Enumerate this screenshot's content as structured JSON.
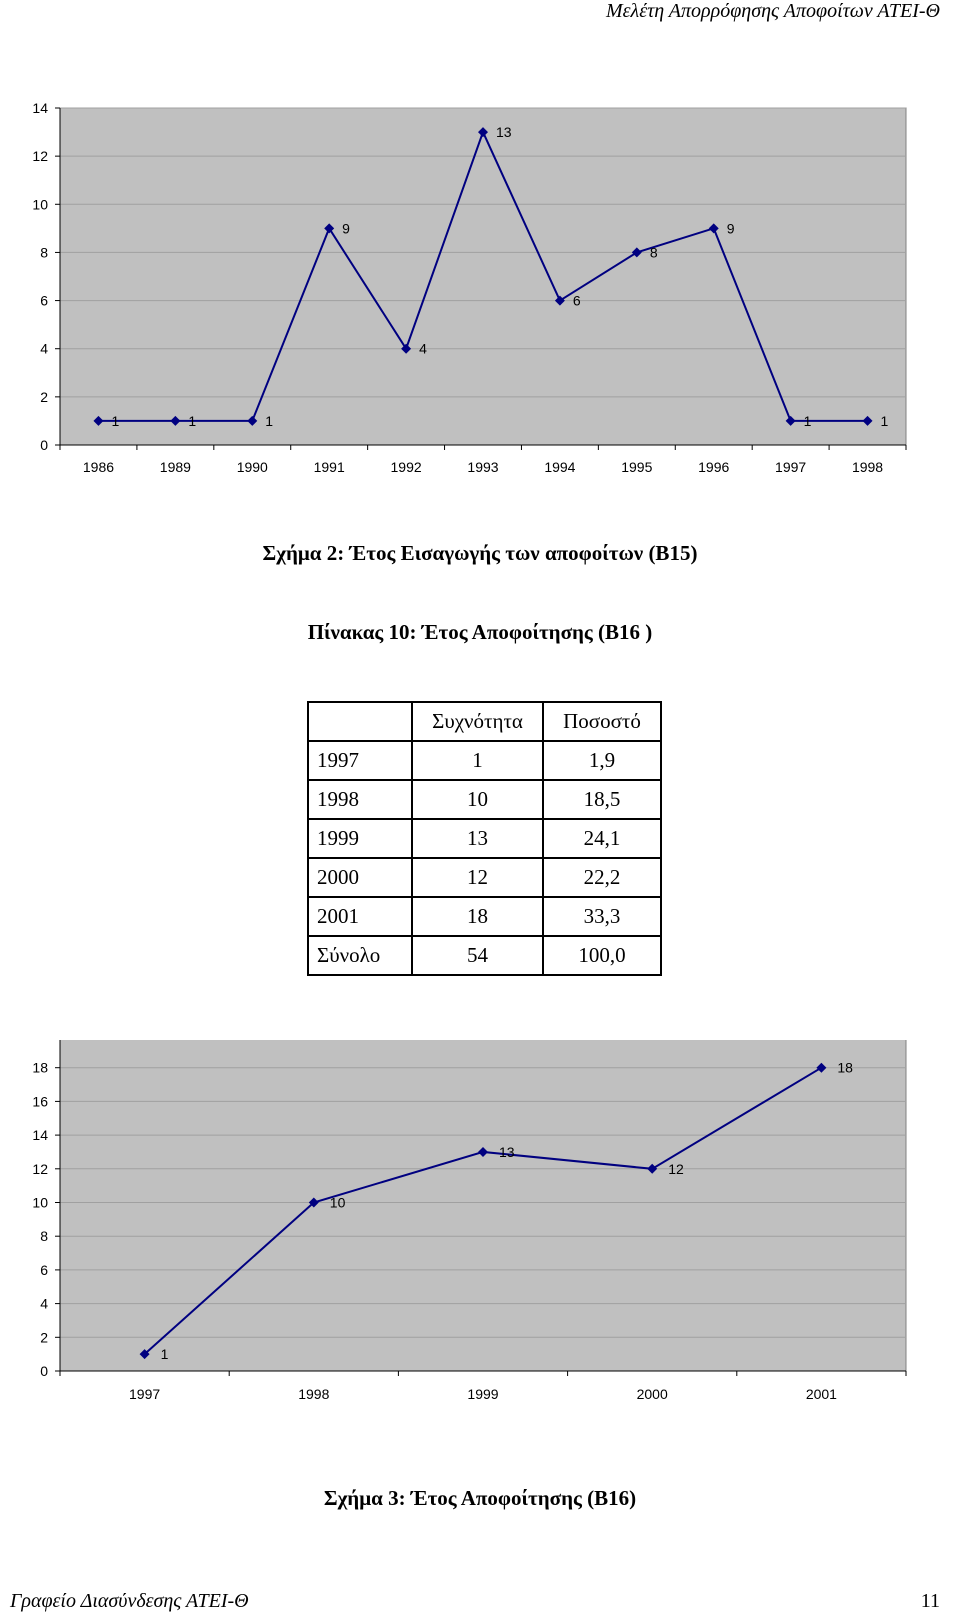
{
  "header": {
    "title": "Μελέτη Απορρόφησης Αποφοίτων ΑΤΕΙ-Θ"
  },
  "footer": {
    "left": "Γραφείο Διασύνδεσης ΑΤΕΙ-Θ",
    "page": "11"
  },
  "colors": {
    "plot_bg": "#c0c0c0",
    "line": "#000080",
    "grid": "#a0a0a0"
  },
  "figure2": {
    "caption": "Σχήμα 2: Έτος Εισαγωγής των αποφοίτων (Β15)",
    "chart_data": {
      "type": "line",
      "categories": [
        "1986",
        "1989",
        "1990",
        "1991",
        "1992",
        "1993",
        "1994",
        "1995",
        "1996",
        "1997",
        "1998"
      ],
      "values": [
        1,
        1,
        1,
        9,
        4,
        13,
        6,
        8,
        9,
        1,
        1
      ],
      "yticks": [
        0,
        2,
        4,
        6,
        8,
        10,
        12,
        14
      ],
      "ylim": [
        0,
        14
      ],
      "grid": true,
      "legend": "none",
      "data_labels": true
    }
  },
  "table10": {
    "title": "Πίνακας 10: Έτος Αποφοίτησης (Β16 )",
    "headers": [
      "",
      "Συχνότητα",
      "Ποσοστό"
    ],
    "rows": [
      [
        "1997",
        "1",
        "1,9"
      ],
      [
        "1998",
        "10",
        "18,5"
      ],
      [
        "1999",
        "13",
        "24,1"
      ],
      [
        "2000",
        "12",
        "22,2"
      ],
      [
        "2001",
        "18",
        "33,3"
      ],
      [
        "Σύνολο",
        "54",
        "100,0"
      ]
    ]
  },
  "figure3": {
    "caption": "Σχήμα 3: Έτος Αποφοίτησης (Β16)",
    "chart_data": {
      "type": "line",
      "categories": [
        "1997",
        "1998",
        "1999",
        "2000",
        "2001"
      ],
      "values": [
        1,
        10,
        13,
        12,
        18
      ],
      "yticks": [
        0,
        2,
        4,
        6,
        8,
        10,
        12,
        14,
        16,
        18,
        20
      ],
      "ylim": [
        0,
        20
      ],
      "grid": true,
      "legend": "none",
      "data_labels": true
    }
  }
}
